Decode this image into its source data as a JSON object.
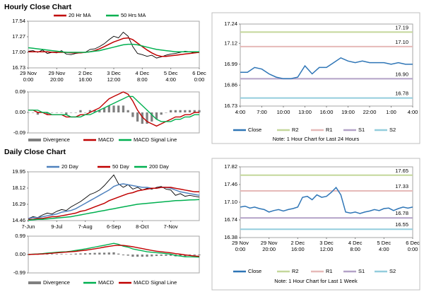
{
  "sections": [
    {
      "title": "Hourly Close Chart"
    },
    {
      "title": "Daily Close Chart"
    }
  ],
  "chart_data": [
    {
      "type": "line",
      "color": "#000000",
      "categories": [
        [
          "29 Nov",
          "0:00"
        ],
        null,
        null,
        null,
        null,
        null,
        [
          "29 Nov",
          "20:00"
        ],
        null,
        null,
        null,
        null,
        null,
        [
          "2 Dec",
          "16:00"
        ],
        null,
        null,
        null,
        null,
        null,
        [
          "3 Dec",
          "12:00"
        ],
        null,
        null,
        null,
        null,
        null,
        [
          "4 Dec",
          "8:00"
        ],
        null,
        null,
        null,
        null,
        null,
        [
          "5 Dec",
          "4:00"
        ],
        null,
        null,
        null,
        null,
        null,
        [
          "6 Dec",
          "0:00"
        ]
      ],
      "values": [
        17.02,
        17.03,
        17.0,
        17.04,
        16.98,
        17.0,
        16.99,
        17.03,
        16.97,
        16.96,
        16.98,
        16.99,
        17.0,
        17.05,
        17.06,
        17.1,
        17.15,
        17.22,
        17.28,
        17.25,
        17.35,
        17.28,
        17.1,
        16.98,
        16.96,
        16.93,
        16.95,
        16.9,
        16.92,
        16.95,
        16.97,
        16.98,
        17.0,
        17.02,
        17.01,
        16.99,
        17.0
      ],
      "series": [
        {
          "name": "20 Hr MA",
          "color": "#c00000",
          "values": [
            17.01,
            17.01,
            17.01,
            17.01,
            17.01,
            17.0,
            17.0,
            17.0,
            17.0,
            16.99,
            16.99,
            16.99,
            17.0,
            17.01,
            17.03,
            17.06,
            17.1,
            17.14,
            17.18,
            17.21,
            17.24,
            17.25,
            17.22,
            17.16,
            17.1,
            17.04,
            16.99,
            16.95,
            16.93,
            16.93,
            16.94,
            16.95,
            16.96,
            16.97,
            16.98,
            16.99,
            17.0
          ]
        },
        {
          "name": "50 Hrs MA",
          "color": "#00b050",
          "values": [
            17.08,
            17.07,
            17.06,
            17.05,
            17.04,
            17.03,
            17.02,
            17.01,
            17.0,
            17.0,
            17.0,
            17.0,
            17.0,
            17.01,
            17.02,
            17.03,
            17.05,
            17.07,
            17.09,
            17.11,
            17.13,
            17.14,
            17.14,
            17.13,
            17.11,
            17.09,
            17.07,
            17.05,
            17.04,
            17.03,
            17.02,
            17.01,
            17.01,
            17.01,
            17.01,
            17.01,
            17.01
          ]
        }
      ],
      "ylim": [
        16.73,
        17.54
      ],
      "yticks": [
        16.73,
        {
          "value": 17,
          "label": "17.00"
        },
        17.27,
        17.54
      ],
      "grid": false
    },
    {
      "type": "combo",
      "series": [
        {
          "name": "Divergence",
          "type": "bar",
          "color": "#808080",
          "values": [
            0,
            0,
            -0.01,
            0,
            -0.01,
            0,
            0,
            0,
            -0.01,
            0,
            0,
            0.01,
            0,
            0.01,
            0.01,
            0.01,
            0.02,
            0.03,
            0.03,
            0.03,
            0.03,
            0.01,
            -0.02,
            -0.04,
            -0.05,
            -0.05,
            -0.04,
            -0.03,
            -0.01,
            0,
            0.01,
            0.01,
            0.01,
            0.01,
            0.01,
            0.01,
            0.01
          ]
        },
        {
          "name": "MACD",
          "type": "line",
          "color": "#c00000",
          "values": [
            0.01,
            0.01,
            0,
            0,
            -0.01,
            -0.01,
            -0.01,
            -0.01,
            -0.02,
            -0.02,
            -0.02,
            -0.01,
            -0.01,
            0,
            0.01,
            0.02,
            0.04,
            0.06,
            0.07,
            0.08,
            0.09,
            0.08,
            0.05,
            0.01,
            -0.02,
            -0.04,
            -0.05,
            -0.06,
            -0.05,
            -0.04,
            -0.03,
            -0.02,
            -0.02,
            -0.01,
            -0.01,
            0,
            0
          ]
        },
        {
          "name": "MACD Signal Line",
          "type": "line",
          "color": "#00b050",
          "values": [
            0.01,
            0.01,
            0.01,
            0,
            0,
            -0.01,
            -0.01,
            -0.01,
            -0.01,
            -0.02,
            -0.02,
            -0.02,
            -0.01,
            -0.01,
            0,
            0.01,
            0.02,
            0.03,
            0.04,
            0.05,
            0.06,
            0.07,
            0.07,
            0.05,
            0.03,
            0.01,
            -0.01,
            -0.03,
            -0.04,
            -0.04,
            -0.04,
            -0.03,
            -0.03,
            -0.02,
            -0.02,
            -0.01,
            -0.01
          ]
        }
      ],
      "ylim": [
        -0.09,
        0.09
      ],
      "yticks": [
        -0.09,
        {
          "value": 0,
          "label": "0.00"
        },
        0.09
      ],
      "grid": false
    },
    {
      "type": "line",
      "categories": [
        "4:00",
        null,
        null,
        "7:00",
        null,
        null,
        "10:00",
        null,
        null,
        "13:00",
        null,
        null,
        "16:00",
        null,
        null,
        "19:00",
        null,
        null,
        "22:00",
        null,
        null,
        "1:00",
        null,
        null,
        "4:00"
      ],
      "series": [
        {
          "name": "Close",
          "color": "#2e75b6",
          "values": [
            16.94,
            16.94,
            16.97,
            16.96,
            16.93,
            16.91,
            16.9,
            16.9,
            16.91,
            16.98,
            16.93,
            16.97,
            16.97,
            17.0,
            17.03,
            17.01,
            17.0,
            17.01,
            17.0,
            17.0,
            17.0,
            16.99,
            17.0,
            16.99,
            16.99
          ]
        }
      ],
      "levels": [
        {
          "name": "R2",
          "value": 17.19,
          "color": "#c4d79b"
        },
        {
          "name": "R1",
          "value": 17.1,
          "label": "17.10",
          "color": "#e6b9b8"
        },
        {
          "name": "S1",
          "value": 16.9,
          "label": "16.90",
          "color": "#b3a2c7"
        },
        {
          "name": "S2",
          "value": 16.78,
          "color": "#93cddd"
        }
      ],
      "note": "Note: 1 Hour Chart for Last 24 Hours",
      "ylim": [
        16.73,
        17.24
      ],
      "yticks": [
        16.73,
        16.86,
        16.99,
        17.12,
        17.24
      ],
      "grid": false
    },
    {
      "type": "line",
      "color": "#000000",
      "categories": [
        "7-Jun",
        null,
        null,
        null,
        null,
        null,
        "9-Jul",
        null,
        null,
        null,
        null,
        null,
        "7-Aug",
        null,
        null,
        null,
        null,
        null,
        "6-Sep",
        null,
        null,
        null,
        null,
        null,
        "8-Oct",
        null,
        null,
        null,
        null,
        null,
        "7-Nov",
        null,
        null,
        null,
        null,
        null,
        null
      ],
      "values": [
        14.7,
        14.9,
        14.8,
        15.1,
        15.3,
        15.2,
        15.5,
        15.7,
        15.6,
        16.0,
        16.3,
        16.6,
        17.0,
        17.4,
        17.6,
        17.9,
        18.4,
        19.0,
        19.6,
        18.6,
        18.2,
        18.5,
        18.0,
        18.2,
        17.9,
        18.1,
        18.0,
        18.2,
        18.3,
        18.0,
        17.9,
        17.3,
        17.5,
        17.2,
        17.3,
        17.2,
        17.1
      ],
      "series": [
        {
          "name": "20 Day",
          "color": "#4f81bd",
          "values": [
            14.7,
            14.8,
            14.8,
            14.9,
            15.0,
            15.1,
            15.2,
            15.4,
            15.5,
            15.6,
            15.8,
            16.1,
            16.4,
            16.7,
            17.0,
            17.3,
            17.6,
            17.9,
            18.3,
            18.5,
            18.6,
            18.5,
            18.4,
            18.3,
            18.2,
            18.2,
            18.1,
            18.1,
            18.2,
            18.2,
            18.1,
            17.9,
            17.7,
            17.6,
            17.5,
            17.4,
            17.3
          ]
        },
        {
          "name": "50 Day",
          "color": "#c00000",
          "values": [
            14.6,
            14.6,
            14.7,
            14.7,
            14.8,
            14.9,
            14.9,
            15.0,
            15.1,
            15.2,
            15.3,
            15.5,
            15.6,
            15.8,
            16.0,
            16.2,
            16.4,
            16.7,
            16.9,
            17.1,
            17.3,
            17.5,
            17.6,
            17.8,
            17.9,
            18.0,
            18.1,
            18.1,
            18.2,
            18.2,
            18.2,
            18.1,
            18.0,
            17.9,
            17.8,
            17.7,
            17.7
          ]
        },
        {
          "name": "200 Day",
          "color": "#00b050",
          "values": [
            14.5,
            14.55,
            14.6,
            14.6,
            14.65,
            14.7,
            14.75,
            14.8,
            14.85,
            14.9,
            15.0,
            15.1,
            15.2,
            15.3,
            15.4,
            15.5,
            15.6,
            15.7,
            15.8,
            15.9,
            16.0,
            16.1,
            16.2,
            16.3,
            16.35,
            16.4,
            16.45,
            16.5,
            16.55,
            16.6,
            16.65,
            16.7,
            16.72,
            16.75,
            16.78,
            16.8,
            16.82
          ]
        }
      ],
      "ylim": [
        14.46,
        19.95
      ],
      "yticks": [
        14.46,
        16.29,
        18.12,
        19.95
      ],
      "grid": false
    },
    {
      "type": "combo",
      "series": [
        {
          "name": "Divergence",
          "type": "bar",
          "color": "#808080",
          "values": [
            0,
            0.01,
            0.01,
            0.02,
            0.03,
            0.03,
            0.03,
            0.03,
            0.02,
            0.03,
            0.05,
            0.06,
            0.07,
            0.08,
            0.09,
            0.1,
            0.1,
            0.11,
            0.12,
            0.05,
            -0.04,
            -0.06,
            -0.12,
            -0.12,
            -0.12,
            -0.12,
            -0.1,
            -0.08,
            -0.07,
            -0.07,
            -0.07,
            -0.1,
            -0.1,
            -0.1,
            -0.07,
            -0.05,
            -0.04
          ]
        },
        {
          "name": "MACD",
          "type": "line",
          "color": "#00b050",
          "values": [
            0,
            0.02,
            0.03,
            0.05,
            0.08,
            0.1,
            0.12,
            0.14,
            0.15,
            0.18,
            0.22,
            0.26,
            0.3,
            0.35,
            0.4,
            0.45,
            0.5,
            0.55,
            0.6,
            0.55,
            0.45,
            0.4,
            0.3,
            0.25,
            0.2,
            0.15,
            0.12,
            0.1,
            0.08,
            0.05,
            0.02,
            -0.05,
            -0.08,
            -0.12,
            -0.12,
            -0.13,
            -0.14
          ]
        },
        {
          "name": "MACD Signal Line",
          "type": "line",
          "color": "#c00000",
          "values": [
            0,
            0.01,
            0.02,
            0.03,
            0.05,
            0.07,
            0.09,
            0.11,
            0.13,
            0.15,
            0.17,
            0.2,
            0.23,
            0.27,
            0.31,
            0.35,
            0.4,
            0.44,
            0.48,
            0.5,
            0.49,
            0.46,
            0.42,
            0.37,
            0.32,
            0.27,
            0.22,
            0.18,
            0.15,
            0.12,
            0.09,
            0.05,
            0.02,
            -0.02,
            -0.05,
            -0.08,
            -0.1
          ]
        }
      ],
      "ylim": [
        -0.99,
        0.99
      ],
      "yticks": [
        -0.99,
        {
          "value": 0,
          "label": "0.00"
        },
        0.99
      ],
      "grid": false
    },
    {
      "type": "line",
      "categories": [
        [
          "29 Nov",
          "0:00"
        ],
        null,
        null,
        null,
        null,
        null,
        [
          "29 Nov",
          "20:00"
        ],
        null,
        null,
        null,
        null,
        null,
        [
          "2 Dec",
          "16:00"
        ],
        null,
        null,
        null,
        null,
        null,
        [
          "3 Dec",
          "12:00"
        ],
        null,
        null,
        null,
        null,
        null,
        [
          "4 Dec",
          "8:00"
        ],
        null,
        null,
        null,
        null,
        null,
        [
          "5 Dec",
          "4:00"
        ],
        null,
        null,
        null,
        null,
        null,
        [
          "6 Dec",
          "0:00"
        ]
      ],
      "series": [
        {
          "name": "Close",
          "color": "#2e75b6",
          "values": [
            17.0,
            17.02,
            16.98,
            17.0,
            16.97,
            16.95,
            16.9,
            16.93,
            16.95,
            16.92,
            16.95,
            16.97,
            17.0,
            17.2,
            17.22,
            17.15,
            17.25,
            17.2,
            17.22,
            17.3,
            17.4,
            17.25,
            16.9,
            16.88,
            16.9,
            16.87,
            16.9,
            16.92,
            16.95,
            16.93,
            16.97,
            16.98,
            16.93,
            16.97,
            17.0,
            16.98,
            17.0
          ]
        }
      ],
      "levels": [
        {
          "name": "R2",
          "value": 17.65,
          "color": "#c4d79b"
        },
        {
          "name": "R1",
          "value": 17.33,
          "color": "#e6b9b8"
        },
        {
          "name": "S1",
          "value": 16.78,
          "color": "#b3a2c7"
        },
        {
          "name": "S2",
          "value": 16.55,
          "color": "#93cddd"
        }
      ],
      "note": "Note: 1 Hour Chart for Last 1 Week",
      "ylim": [
        16.38,
        17.82
      ],
      "yticks": [
        16.38,
        16.74,
        {
          "value": 17.1,
          "label": "17.10"
        },
        17.46,
        17.82
      ],
      "grid": false
    }
  ]
}
